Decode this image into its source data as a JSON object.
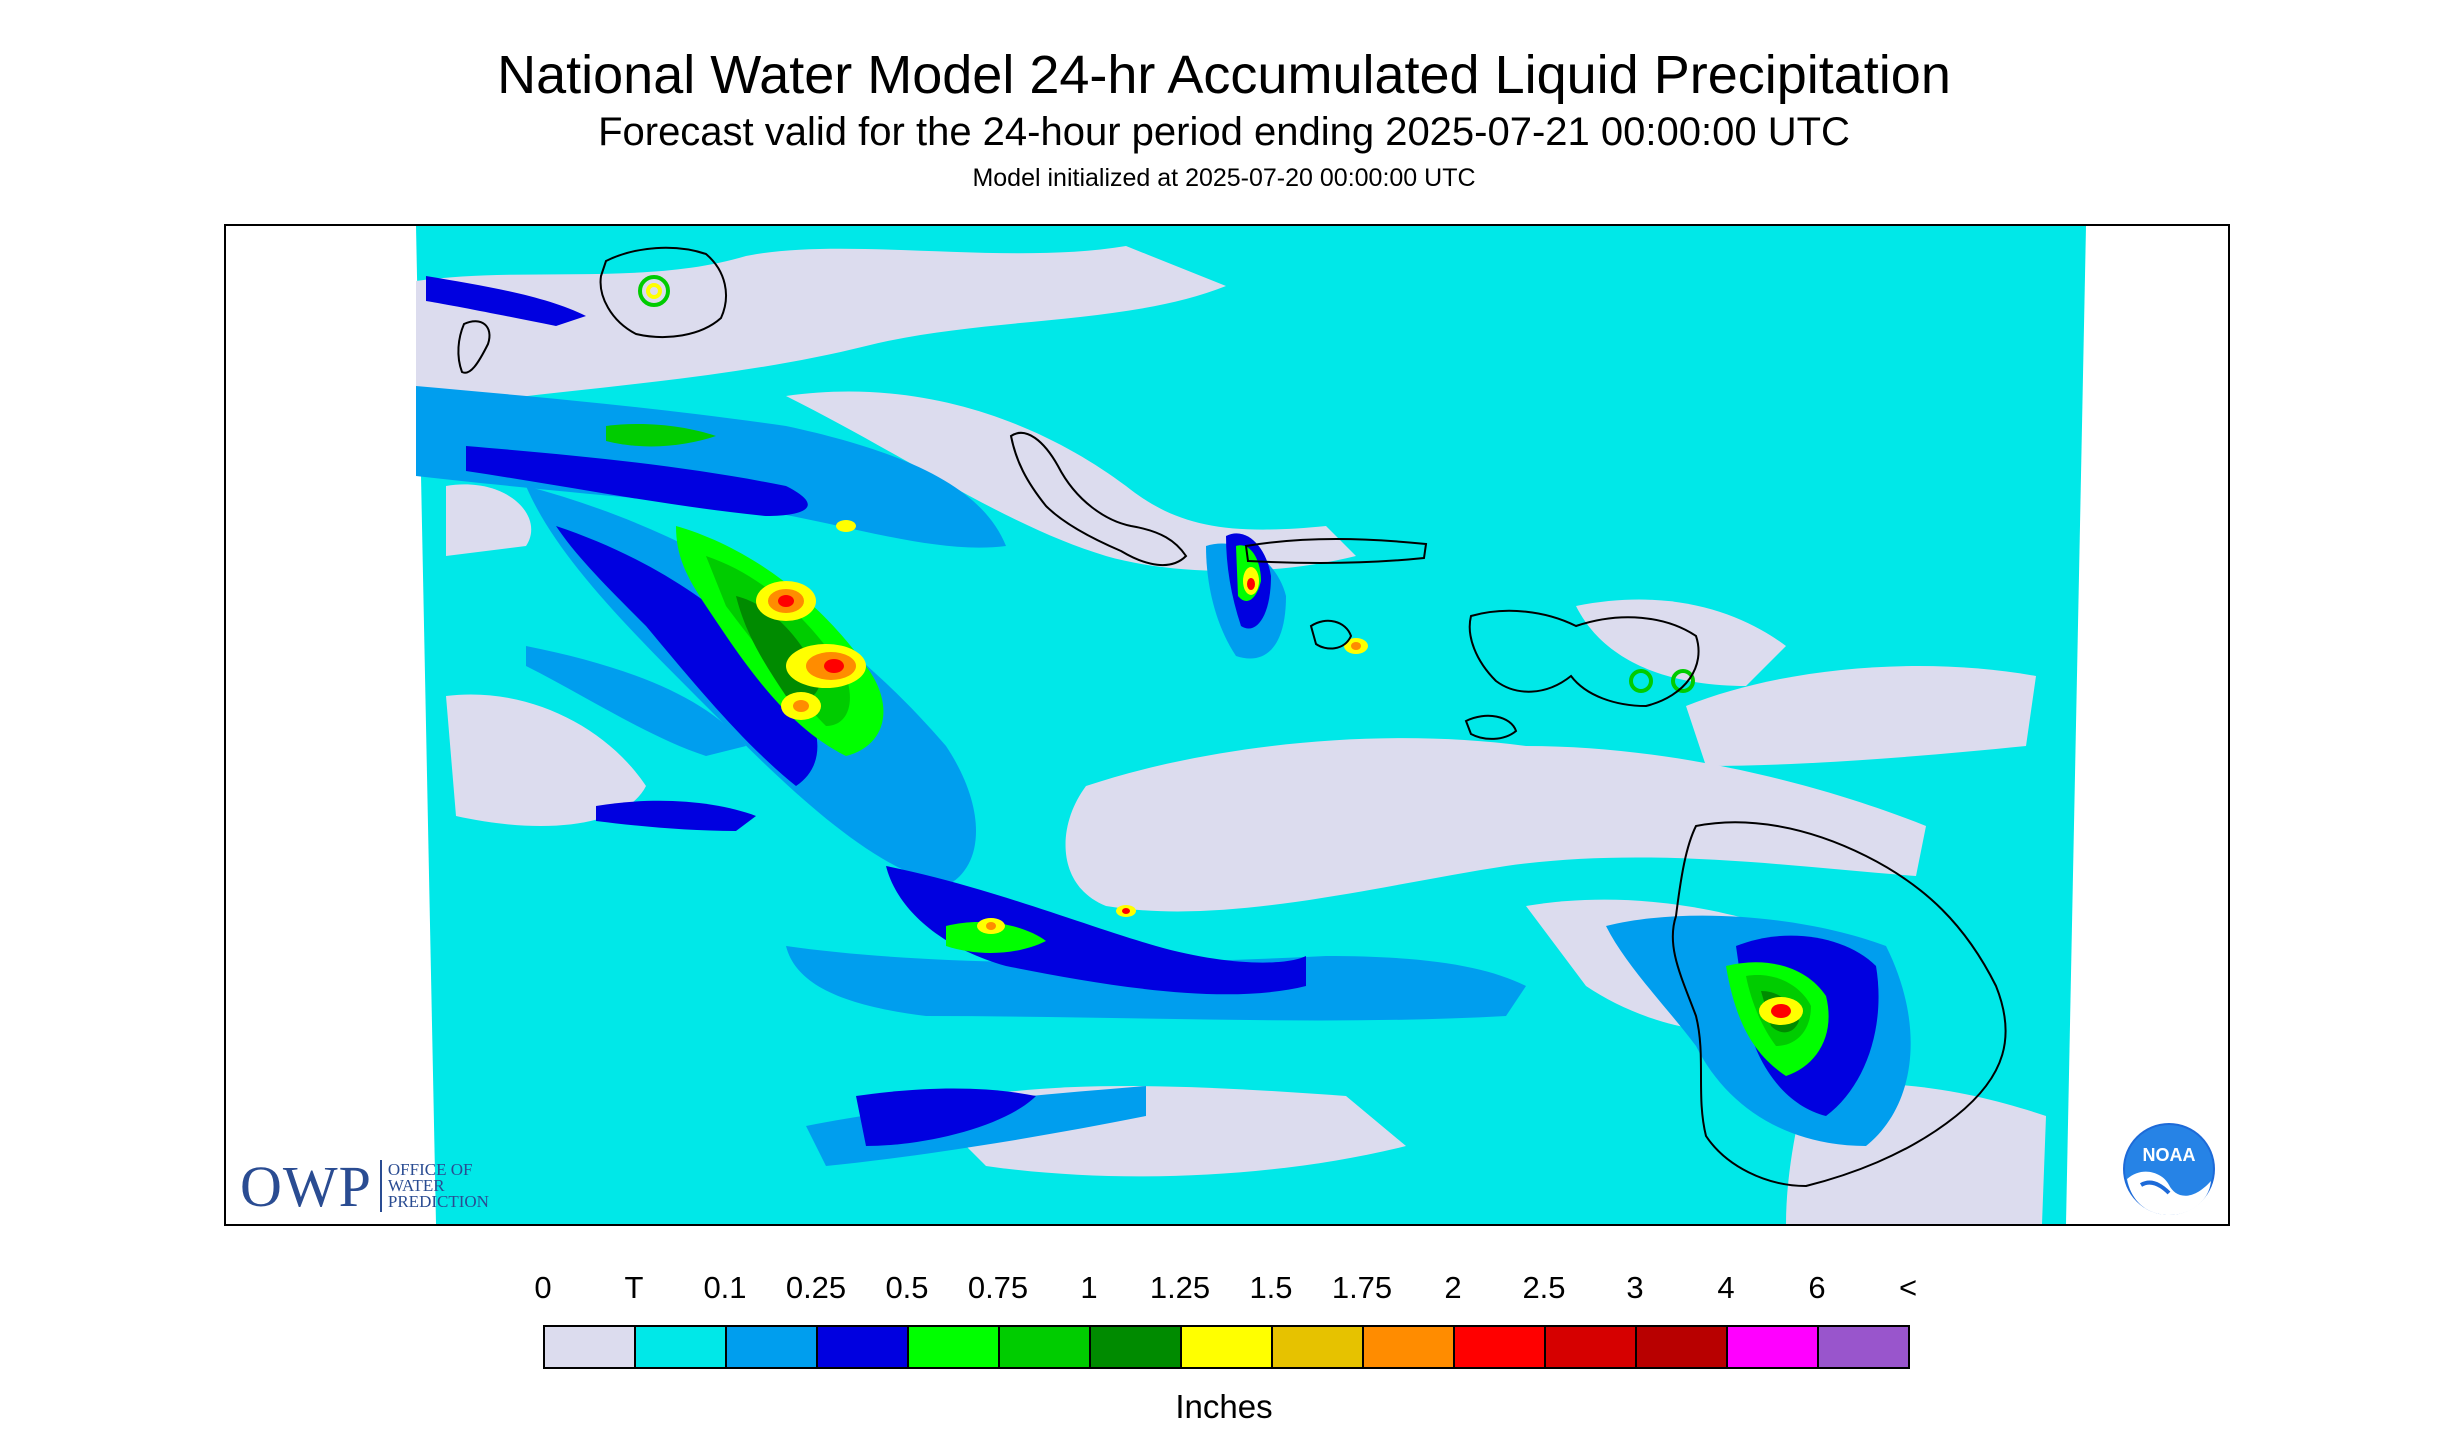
{
  "header": {
    "title": "National Water Model 24-hr Accumulated Liquid Precipitation",
    "subtitle": "Forecast valid for the 24-hour period ending 2025-07-21 00:00:00 UTC",
    "init_line": "Model initialized at 2025-07-20 00:00:00 UTC"
  },
  "logos": {
    "owp_abbrev": "OWP",
    "owp_line1": "OFFICE OF",
    "owp_line2": "WATER",
    "owp_line3": "PREDICTION",
    "noaa_text": "NOAA"
  },
  "legend": {
    "ticks": [
      "0",
      "T",
      "0.1",
      "0.25",
      "0.5",
      "0.75",
      "1",
      "1.25",
      "1.5",
      "1.75",
      "2",
      "2.5",
      "3",
      "4",
      "6",
      "<"
    ],
    "colors": [
      "#dcdcee",
      "#00e8e8",
      "#009eee",
      "#0000e0",
      "#00ff00",
      "#00cc00",
      "#008b00",
      "#ffff00",
      "#e6c200",
      "#ff8c00",
      "#ff0000",
      "#d60000",
      "#b80000",
      "#ff00ff",
      "#9955cc"
    ],
    "units": "Inches"
  },
  "map_colors": {
    "none": "#dcdcee",
    "trace": "#00e8e8",
    "light": "#009eee",
    "moderate": "#0000e0",
    "heavy1": "#00ff00",
    "heavy2": "#00cc00",
    "heavy3": "#008b00",
    "intense1": "#ffff00",
    "intense2": "#e6c200",
    "intense3": "#ff8c00",
    "extreme": "#ff0000"
  }
}
